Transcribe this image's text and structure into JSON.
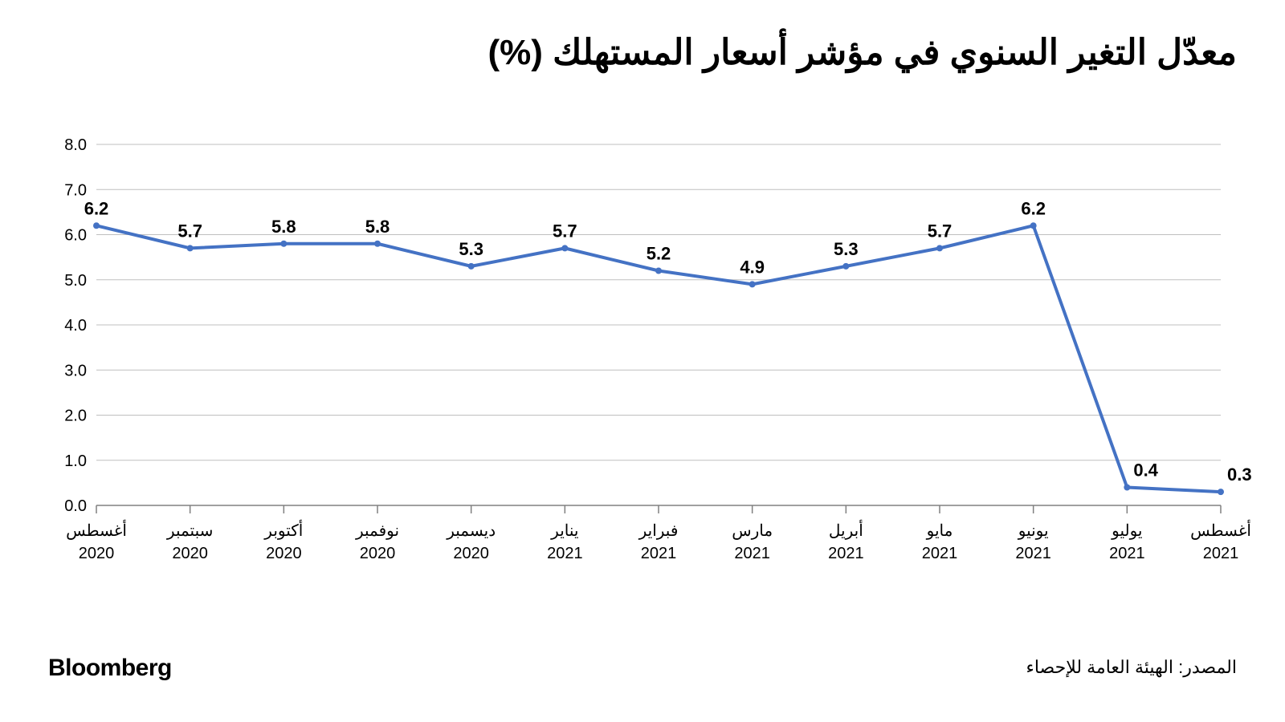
{
  "title": "معدّل التغير السنوي في مؤشر أسعار المستهلك (%)",
  "brand": "Bloomberg",
  "source": "المصدر: الهيئة العامة للإحصاء",
  "chart": {
    "type": "line",
    "background_color": "#ffffff",
    "line_color": "#4472c4",
    "line_width": 4,
    "marker_color": "#4472c4",
    "marker_radius": 4,
    "grid_color": "#bfbfbf",
    "axis_color": "#808080",
    "tick_color": "#808080",
    "text_color": "#000000",
    "yaxis_label_fontsize": 20,
    "xaxis_label_fontsize": 20,
    "datalabel_fontsize": 22,
    "datalabel_weight": "700",
    "ylim": [
      0.0,
      8.0
    ],
    "ytick_step": 1.0,
    "yticks": [
      "0.0",
      "1.0",
      "2.0",
      "3.0",
      "4.0",
      "5.0",
      "6.0",
      "7.0",
      "8.0"
    ],
    "categories_month": [
      "أغسطس",
      "سبتمبر",
      "أكتوبر",
      "نوفمبر",
      "ديسمبر",
      "يناير",
      "فبراير",
      "مارس",
      "أبريل",
      "مايو",
      "يونيو",
      "يوليو",
      "أغسطس"
    ],
    "categories_year": [
      "2020",
      "2020",
      "2020",
      "2020",
      "2020",
      "2021",
      "2021",
      "2021",
      "2021",
      "2021",
      "2021",
      "2021",
      "2021"
    ],
    "values": [
      6.2,
      5.7,
      5.8,
      5.8,
      5.3,
      5.7,
      5.2,
      4.9,
      5.3,
      5.7,
      6.2,
      0.4,
      0.3
    ],
    "datalabels": [
      "6.2",
      "5.7",
      "5.8",
      "5.8",
      "5.3",
      "5.7",
      "5.2",
      "4.9",
      "5.3",
      "5.7",
      "6.2",
      "0.4",
      "0.3"
    ]
  },
  "title_fontsize": 44,
  "brand_fontsize": 30,
  "source_fontsize": 22
}
